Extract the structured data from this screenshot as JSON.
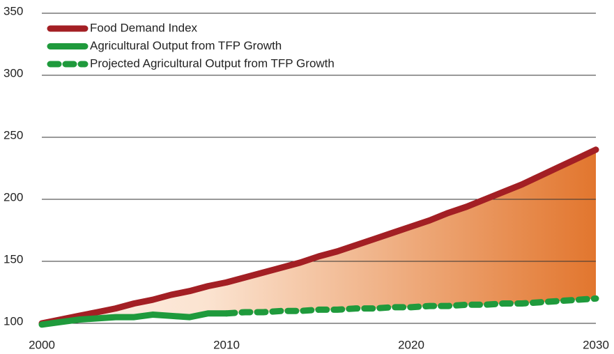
{
  "chart_data": {
    "type": "line",
    "x": [
      2000,
      2001,
      2002,
      2003,
      2004,
      2005,
      2006,
      2007,
      2008,
      2009,
      2010,
      2011,
      2012,
      2013,
      2014,
      2015,
      2016,
      2017,
      2018,
      2019,
      2020,
      2021,
      2022,
      2023,
      2024,
      2025,
      2026,
      2027,
      2028,
      2029,
      2030
    ],
    "series": [
      {
        "name": "Food Demand Index",
        "color": "#a31f24",
        "dashed": false,
        "values": [
          100,
          103,
          106,
          109,
          112,
          116,
          119,
          123,
          126,
          130,
          133,
          137,
          141,
          145,
          149,
          154,
          158,
          163,
          168,
          173,
          178,
          183,
          189,
          194,
          200,
          206,
          212,
          219,
          226,
          233,
          240
        ]
      },
      {
        "name": "Agricultural Output from TFP Growth",
        "color": "#1f9a3c",
        "dashed": false,
        "values": [
          99,
          101,
          103,
          104,
          105,
          105,
          107,
          106,
          105,
          108,
          108,
          null,
          null,
          null,
          null,
          null,
          null,
          null,
          null,
          null,
          null,
          null,
          null,
          null,
          null,
          null,
          null,
          null,
          null,
          null,
          null
        ]
      },
      {
        "name": "Projected Agricultural Output from TFP Growth",
        "color": "#1f9a3c",
        "dashed": true,
        "values": [
          null,
          null,
          null,
          null,
          null,
          null,
          null,
          null,
          null,
          null,
          108,
          109,
          109,
          110,
          110,
          111,
          111,
          112,
          112,
          113,
          113,
          114,
          114,
          115,
          115,
          116,
          116,
          117,
          118,
          119,
          120
        ]
      }
    ],
    "xlim": [
      2000,
      2030
    ],
    "xticks": [
      2000,
      2010,
      2020,
      2030
    ],
    "ylim": [
      100,
      350
    ],
    "yticks": [
      100,
      150,
      200,
      250,
      300,
      350
    ],
    "grid": true,
    "legend": "top-left"
  }
}
